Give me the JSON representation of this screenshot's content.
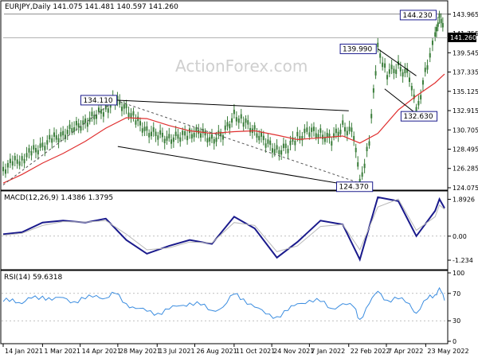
{
  "colors": {
    "candle": "#3a7d3a",
    "ma": "#e03030",
    "macd_line": "#1a1a8c",
    "macd_signal": "#b8b8b8",
    "rsi": "#3b8de0",
    "grid": "#9a9a9a",
    "trend": "#000000",
    "dashed": "#555555",
    "label_box": "#1a1a8c",
    "price_tag_bg": "#000000",
    "price_tag_fg": "#ffffff"
  },
  "header": {
    "price": "EURJPY,Daily  141.075 141.481 140.597 141.260",
    "macd": "MACD(12,26,9) 1.4386 1.3795",
    "rsi": "RSI(14) 59.6318"
  },
  "watermark": "ActionForex.com",
  "current_price_tag": "141.260",
  "annotations": [
    {
      "text": "144.230",
      "date": "2022-06-08",
      "price": 144.23
    },
    {
      "text": "139.990",
      "date": "2022-03-28",
      "price": 139.99
    },
    {
      "text": "134.110",
      "date": "2021-05-25",
      "price": 134.11
    },
    {
      "text": "132.630",
      "date": "2022-05-12",
      "price": 132.63
    },
    {
      "text": "124.370",
      "date": "2022-03-07",
      "price": 124.37
    }
  ],
  "chart_data": [
    {
      "panel": "price",
      "type": "line",
      "y_ticks": [
        "143.965",
        "141.755",
        "139.545",
        "137.335",
        "135.125",
        "132.915",
        "130.705",
        "128.495",
        "126.285",
        "124.075"
      ],
      "ylim": [
        123.8,
        145.5
      ],
      "x_ticks": [
        "14 Jan 2021",
        "1 Mar 2021",
        "14 Apr 2021",
        "28 May 2021",
        "13 Jul 2021",
        "26 Aug 2021",
        "11 Oct 2021",
        "24 Nov 2021",
        "7 Jan 2022",
        "22 Feb 2022",
        "7 Apr 2022",
        "23 May 2022"
      ],
      "x_tick_dates": [
        "2021-01-14",
        "2021-03-01",
        "2021-04-14",
        "2021-05-28",
        "2021-07-13",
        "2021-08-26",
        "2021-10-11",
        "2021-11-24",
        "2022-01-07",
        "2022-02-22",
        "2022-04-07",
        "2022-05-23"
      ],
      "x_range": [
        "2021-01-14",
        "2022-06-14"
      ],
      "series": [
        {
          "kind": "close",
          "x": [
            "2021-01-14",
            "2021-01-25",
            "2021-02-05",
            "2021-02-16",
            "2021-03-01",
            "2021-03-12",
            "2021-03-25",
            "2021-04-07",
            "2021-04-20",
            "2021-05-03",
            "2021-05-14",
            "2021-05-25",
            "2021-06-07",
            "2021-06-18",
            "2021-07-01",
            "2021-07-14",
            "2021-07-27",
            "2021-08-09",
            "2021-08-20",
            "2021-09-02",
            "2021-09-15",
            "2021-09-28",
            "2021-10-11",
            "2021-10-22",
            "2021-11-04",
            "2021-11-17",
            "2021-11-30",
            "2021-12-13",
            "2021-12-24",
            "2022-01-07",
            "2022-01-20",
            "2022-02-02",
            "2022-02-15",
            "2022-02-28",
            "2022-03-07",
            "2022-03-18",
            "2022-03-28",
            "2022-04-08",
            "2022-04-21",
            "2022-05-04",
            "2022-05-12",
            "2022-05-25",
            "2022-06-03",
            "2022-06-08",
            "2022-06-14"
          ],
          "values": [
            126.2,
            126.9,
            127.4,
            128.1,
            128.9,
            129.6,
            130.2,
            130.9,
            131.6,
            132.4,
            133.1,
            134.1,
            133.2,
            131.8,
            130.6,
            130.1,
            129.7,
            129.9,
            130.3,
            130.4,
            129.6,
            130.2,
            132.4,
            131.7,
            130.6,
            129.3,
            128.3,
            128.7,
            129.8,
            130.6,
            130.2,
            129.6,
            131.1,
            130.2,
            124.4,
            129.6,
            139.99,
            137.2,
            137.9,
            136.9,
            132.63,
            138.3,
            141.2,
            144.23,
            141.26
          ]
        },
        {
          "kind": "ma",
          "x": [
            "2021-01-14",
            "2021-02-05",
            "2021-03-01",
            "2021-03-25",
            "2021-04-20",
            "2021-05-14",
            "2021-06-07",
            "2021-07-01",
            "2021-07-27",
            "2021-08-20",
            "2021-09-15",
            "2021-10-11",
            "2021-11-04",
            "2021-11-30",
            "2021-12-24",
            "2022-01-20",
            "2022-02-15",
            "2022-03-07",
            "2022-03-28",
            "2022-04-21",
            "2022-05-12",
            "2022-06-03",
            "2022-06-14"
          ],
          "values": [
            124.6,
            125.6,
            126.9,
            128.0,
            129.4,
            130.9,
            132.1,
            132.0,
            131.2,
            130.6,
            130.3,
            130.5,
            130.6,
            130.1,
            129.6,
            129.8,
            130.0,
            129.2,
            130.3,
            133.0,
            134.6,
            136.1,
            137.1
          ]
        }
      ]
    },
    {
      "panel": "macd",
      "type": "line",
      "y_ticks": [
        "1.8926",
        "0.00",
        "-1.234"
      ],
      "ylim": [
        -1.6,
        2.2
      ],
      "series": [
        {
          "kind": "line",
          "x": [
            "2021-01-14",
            "2021-02-05",
            "2021-03-01",
            "2021-03-25",
            "2021-04-20",
            "2021-05-14",
            "2021-06-07",
            "2021-07-01",
            "2021-07-27",
            "2021-08-20",
            "2021-09-15",
            "2021-10-11",
            "2021-11-04",
            "2021-11-30",
            "2021-12-24",
            "2022-01-20",
            "2022-02-15",
            "2022-03-07",
            "2022-03-28",
            "2022-04-21",
            "2022-05-12",
            "2022-06-03",
            "2022-06-08",
            "2022-06-14"
          ],
          "values": [
            0.1,
            0.2,
            0.7,
            0.8,
            0.7,
            0.9,
            -0.2,
            -0.9,
            -0.5,
            -0.2,
            -0.4,
            1.0,
            0.4,
            -1.1,
            -0.3,
            0.8,
            0.6,
            -1.2,
            2.0,
            1.8,
            0.0,
            1.3,
            1.9,
            1.44
          ]
        },
        {
          "kind": "signal",
          "x": [
            "2021-01-14",
            "2021-02-05",
            "2021-03-01",
            "2021-03-25",
            "2021-04-20",
            "2021-05-14",
            "2021-06-07",
            "2021-07-01",
            "2021-07-27",
            "2021-08-20",
            "2021-09-15",
            "2021-10-11",
            "2021-11-04",
            "2021-11-30",
            "2021-12-24",
            "2022-01-20",
            "2022-02-15",
            "2022-03-07",
            "2022-03-28",
            "2022-04-21",
            "2022-05-12",
            "2022-06-03",
            "2022-06-08",
            "2022-06-14"
          ],
          "values": [
            0.05,
            0.15,
            0.55,
            0.75,
            0.72,
            0.8,
            0.1,
            -0.7,
            -0.6,
            -0.3,
            -0.35,
            0.7,
            0.55,
            -0.8,
            -0.5,
            0.5,
            0.6,
            -0.7,
            1.5,
            1.9,
            0.3,
            1.0,
            1.6,
            1.38
          ]
        }
      ]
    },
    {
      "panel": "rsi",
      "type": "line",
      "y_ticks": [
        "100",
        "70",
        "30",
        "0"
      ],
      "ylim": [
        0,
        100
      ],
      "series": [
        {
          "kind": "rsi",
          "x": [
            "2021-01-14",
            "2021-01-25",
            "2021-02-05",
            "2021-02-16",
            "2021-03-01",
            "2021-03-12",
            "2021-03-25",
            "2021-04-07",
            "2021-04-20",
            "2021-05-03",
            "2021-05-14",
            "2021-05-25",
            "2021-06-07",
            "2021-06-18",
            "2021-07-01",
            "2021-07-14",
            "2021-07-27",
            "2021-08-09",
            "2021-08-20",
            "2021-09-02",
            "2021-09-15",
            "2021-09-28",
            "2021-10-11",
            "2021-10-22",
            "2021-11-04",
            "2021-11-17",
            "2021-11-30",
            "2021-12-13",
            "2021-12-24",
            "2022-01-07",
            "2022-01-20",
            "2022-02-02",
            "2022-02-15",
            "2022-02-28",
            "2022-03-07",
            "2022-03-18",
            "2022-03-28",
            "2022-04-08",
            "2022-04-21",
            "2022-05-04",
            "2022-05-12",
            "2022-05-25",
            "2022-06-03",
            "2022-06-08",
            "2022-06-14"
          ],
          "values": [
            58,
            62,
            55,
            63,
            66,
            60,
            64,
            58,
            62,
            67,
            63,
            70,
            55,
            48,
            44,
            41,
            47,
            52,
            56,
            53,
            45,
            50,
            69,
            62,
            50,
            40,
            36,
            45,
            55,
            60,
            58,
            48,
            55,
            50,
            32,
            55,
            73,
            60,
            62,
            55,
            41,
            62,
            68,
            78,
            59.63
          ]
        }
      ]
    }
  ]
}
